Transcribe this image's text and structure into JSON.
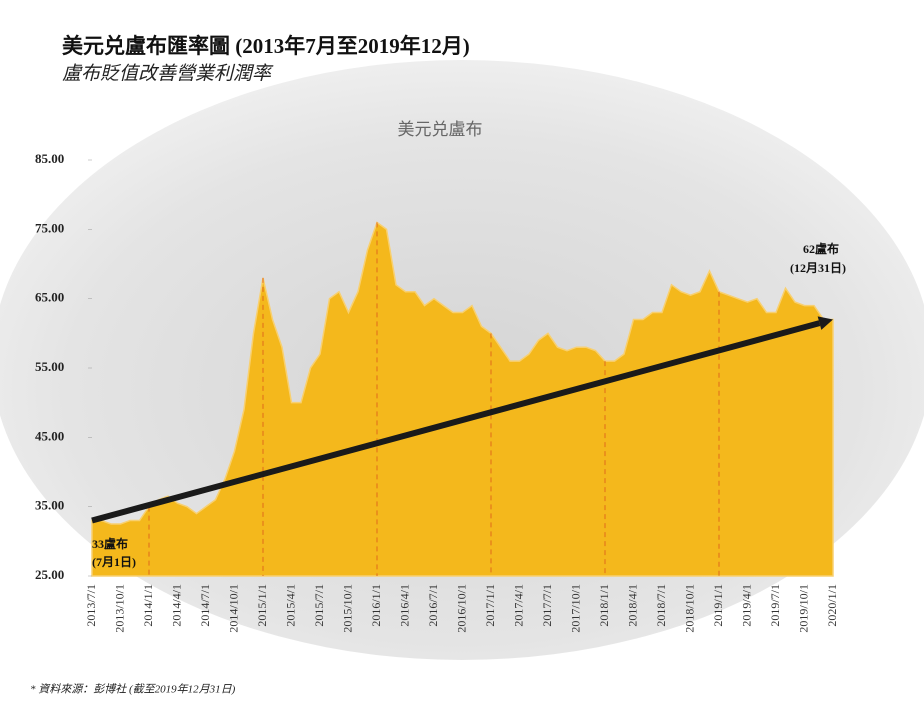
{
  "chart_data": {
    "type": "area",
    "title": "美元兑盧布匯率圖 (2013年7月至2019年12月)",
    "subtitle": "盧布貶值改善營業利潤率",
    "series_name": "美元兑盧布",
    "color": "#f4b81c",
    "categories": [
      "2013/7/1",
      null,
      null,
      "2013/10/1",
      null,
      null,
      "2014/1/1",
      null,
      null,
      "2014/4/1",
      null,
      null,
      "2014/7/1",
      null,
      null,
      "2014/10/1",
      null,
      null,
      "2015/1/1",
      null,
      null,
      "2015/4/1",
      null,
      null,
      "2015/7/1",
      null,
      null,
      "2015/10/1",
      null,
      null,
      "2016/1/1",
      null,
      null,
      "2016/4/1",
      null,
      null,
      "2016/7/1",
      null,
      null,
      "2016/10/1",
      null,
      null,
      "2017/1/1",
      null,
      null,
      "2017/4/1",
      null,
      null,
      "2017/7/1",
      null,
      null,
      "2017/10/1",
      null,
      null,
      "2018/1/1",
      null,
      null,
      "2018/4/1",
      null,
      null,
      "2018/7/1",
      null,
      null,
      "2018/10/1",
      null,
      null,
      "2019/1/1",
      null,
      null,
      "2019/4/1",
      null,
      null,
      "2019/7/1",
      null,
      null,
      "2019/10/1",
      null,
      null,
      "2020/1/1"
    ],
    "values": [
      33,
      33,
      32.5,
      32.5,
      33,
      33,
      35,
      36,
      36.5,
      35.5,
      35,
      34,
      35,
      36,
      39,
      43,
      49,
      60,
      68,
      62,
      58,
      50,
      50,
      55,
      57,
      65,
      66,
      63,
      66,
      72,
      76,
      75,
      67,
      66,
      66,
      64,
      65,
      64,
      63,
      63,
      64,
      61,
      60,
      58,
      56,
      56,
      57,
      59,
      60,
      58,
      57.5,
      58,
      58,
      57.5,
      56,
      56,
      57,
      62,
      62,
      63,
      63,
      67,
      66,
      65.5,
      66,
      69,
      66,
      65.5,
      65,
      64.5,
      65,
      63,
      63,
      66.5,
      64.5,
      64,
      64,
      62,
      62
    ],
    "ylim": [
      25,
      85
    ],
    "yticks": [
      {
        "value": 25,
        "label": "25.00"
      },
      {
        "value": 35,
        "label": "35.00"
      },
      {
        "value": 45,
        "label": "45.00"
      },
      {
        "value": 55,
        "label": "55.00"
      },
      {
        "value": 65,
        "label": "65.00"
      },
      {
        "value": 75,
        "label": "75.00"
      },
      {
        "value": 85,
        "label": "85.00"
      }
    ],
    "trend": [
      33,
      62
    ],
    "annotations": [
      {
        "text": "33盧布",
        "sub": "(7月1日)"
      },
      {
        "text": "62盧布",
        "sub": "(12月31日)"
      }
    ],
    "source": "* 資料來源：彭博社 (截至2019年12月31日)"
  }
}
